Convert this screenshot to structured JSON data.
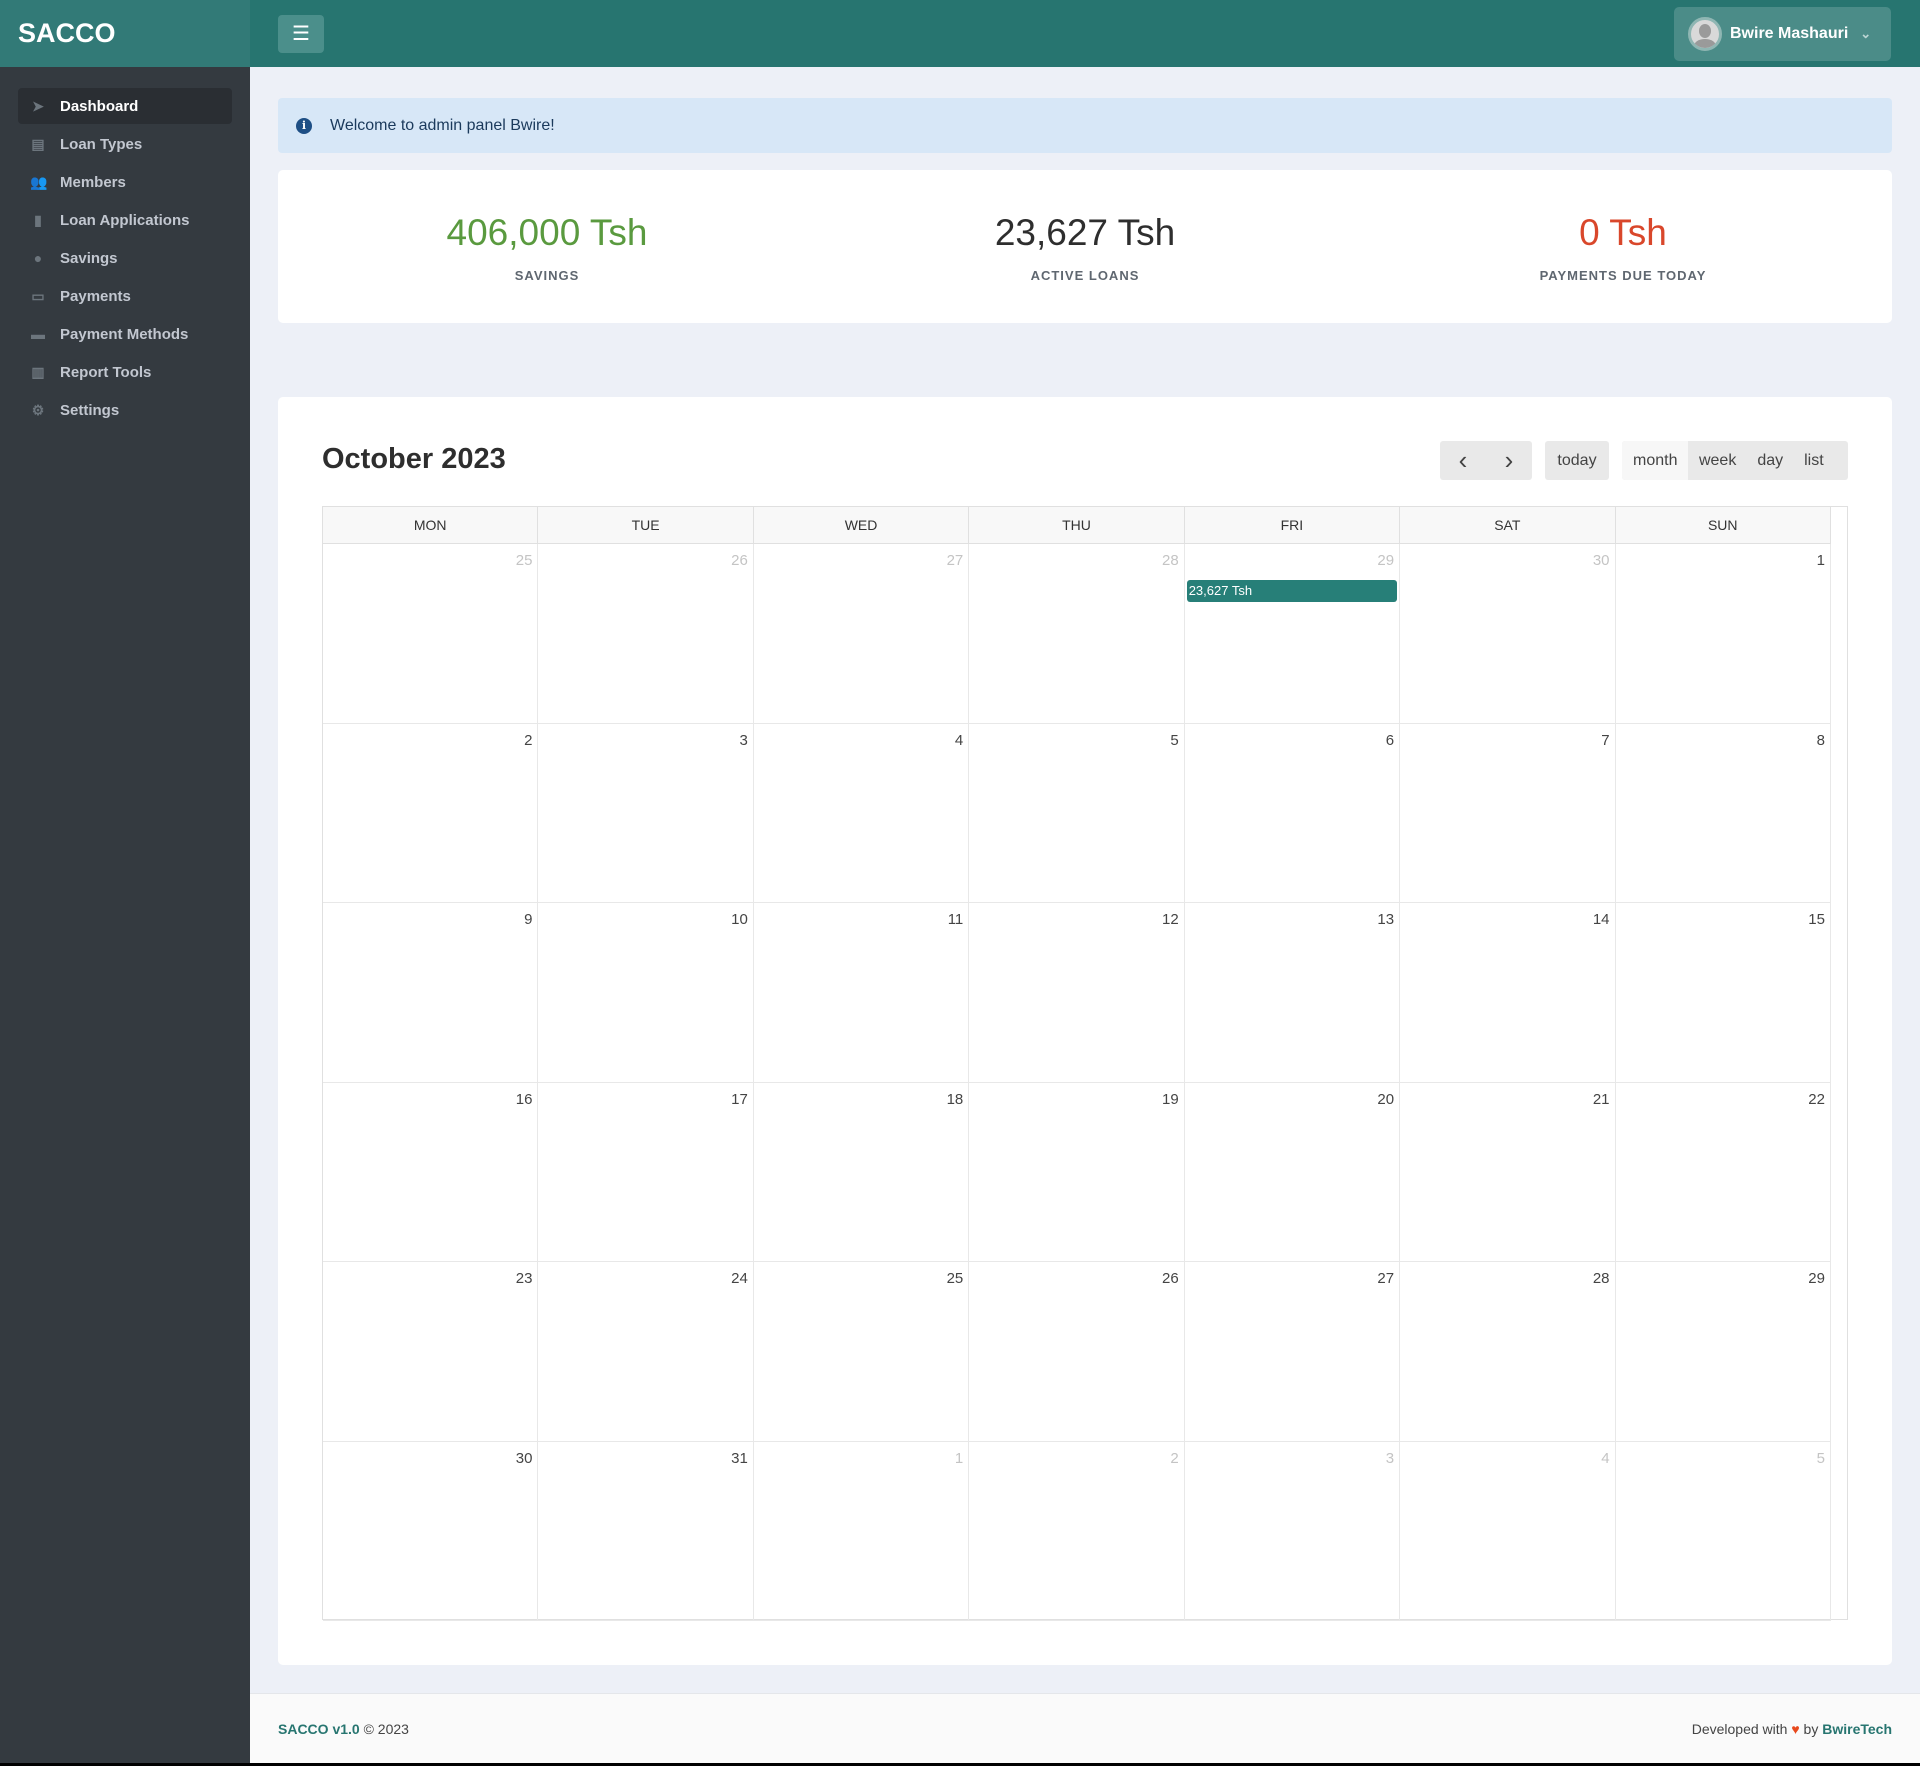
{
  "brand": "SACCO",
  "sidebar": {
    "items": [
      {
        "label": "Dashboard",
        "icon": "paper-plane-icon",
        "glyph": "➤",
        "active": true
      },
      {
        "label": "Loan Types",
        "icon": "chart-money-icon",
        "glyph": "▤"
      },
      {
        "label": "Members",
        "icon": "users-icon",
        "glyph": "👥"
      },
      {
        "label": "Loan Applications",
        "icon": "book-icon",
        "glyph": "▮"
      },
      {
        "label": "Savings",
        "icon": "piggy-bank-icon",
        "glyph": "●"
      },
      {
        "label": "Payments",
        "icon": "money-bill-icon",
        "glyph": "▭"
      },
      {
        "label": "Payment Methods",
        "icon": "wallet-icon",
        "glyph": "▬"
      },
      {
        "label": "Report Tools",
        "icon": "bar-chart-icon",
        "glyph": "▥"
      },
      {
        "label": "Settings",
        "icon": "gear-icon",
        "glyph": "⚙"
      }
    ]
  },
  "topbar": {
    "menu_glyph": "☰",
    "user_name": "Bwire Mashauri",
    "chevron": "⌄"
  },
  "alert": {
    "icon": "i",
    "text": "Welcome to admin panel Bwire!"
  },
  "stats": [
    {
      "value": "406,000 Tsh",
      "label": "SAVINGS",
      "color": "#5a9a3f"
    },
    {
      "value": "23,627 Tsh",
      "label": "ACTIVE LOANS",
      "color": "#2e2e2e"
    },
    {
      "value": "0 Tsh",
      "label": "PAYMENTS DUE TODAY",
      "color": "#d9472b"
    }
  ],
  "calendar": {
    "title": "October 2023",
    "prev": "‹",
    "next": "›",
    "today": "today",
    "views": [
      "month",
      "week",
      "day",
      "list"
    ],
    "active_view": "month",
    "days_of_week": [
      "MON",
      "TUE",
      "WED",
      "THU",
      "FRI",
      "SAT",
      "SUN"
    ],
    "weeks": [
      [
        {
          "n": "25",
          "o": true
        },
        {
          "n": "26",
          "o": true
        },
        {
          "n": "27",
          "o": true
        },
        {
          "n": "28",
          "o": true
        },
        {
          "n": "29",
          "o": true,
          "event": "23,627 Tsh"
        },
        {
          "n": "30",
          "o": true
        },
        {
          "n": "1"
        }
      ],
      [
        {
          "n": "2"
        },
        {
          "n": "3"
        },
        {
          "n": "4"
        },
        {
          "n": "5"
        },
        {
          "n": "6"
        },
        {
          "n": "7"
        },
        {
          "n": "8"
        }
      ],
      [
        {
          "n": "9"
        },
        {
          "n": "10"
        },
        {
          "n": "11"
        },
        {
          "n": "12"
        },
        {
          "n": "13"
        },
        {
          "n": "14"
        },
        {
          "n": "15"
        }
      ],
      [
        {
          "n": "16"
        },
        {
          "n": "17"
        },
        {
          "n": "18"
        },
        {
          "n": "19"
        },
        {
          "n": "20"
        },
        {
          "n": "21"
        },
        {
          "n": "22"
        }
      ],
      [
        {
          "n": "23"
        },
        {
          "n": "24"
        },
        {
          "n": "25"
        },
        {
          "n": "26"
        },
        {
          "n": "27"
        },
        {
          "n": "28"
        },
        {
          "n": "29"
        }
      ],
      [
        {
          "n": "30"
        },
        {
          "n": "31"
        },
        {
          "n": "1",
          "o": true
        },
        {
          "n": "2",
          "o": true
        },
        {
          "n": "3",
          "o": true
        },
        {
          "n": "4",
          "o": true
        },
        {
          "n": "5",
          "o": true
        }
      ]
    ]
  },
  "footer": {
    "app": "SACCO v1.0",
    "copy": "© 2023",
    "developed": "Developed with",
    "heart": "♥",
    "by": "by",
    "company": "BwireTech"
  }
}
